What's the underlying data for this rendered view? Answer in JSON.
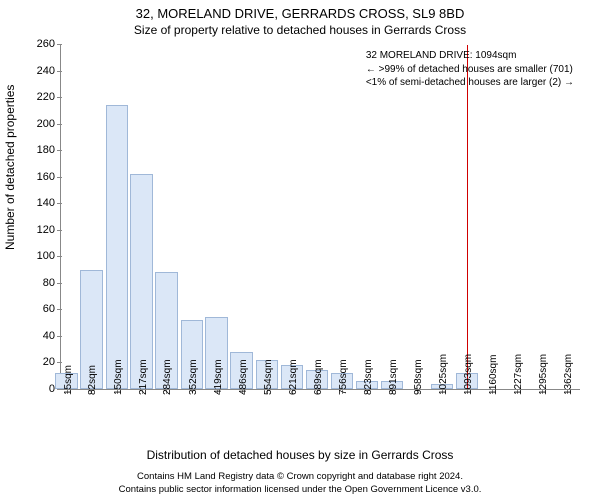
{
  "chart": {
    "type": "histogram",
    "title_main": "32, MORELAND DRIVE, GERRARDS CROSS, SL9 8BD",
    "title_sub": "Size of property relative to detached houses in Gerrards Cross",
    "xlabel": "Distribution of detached houses by size in Gerrards Cross",
    "ylabel": "Number of detached properties",
    "bar_color": "#dbe7f7",
    "bar_border_color": "#a0b8d8",
    "reference_line_color": "#d00000",
    "background_color": "#ffffff",
    "axis_color": "#888888",
    "title_fontsize": 13,
    "subtitle_fontsize": 12,
    "label_fontsize": 12,
    "tick_fontsize": 11,
    "annotation_fontsize": 10,
    "xlim": [
      0,
      1400
    ],
    "ylim": [
      0,
      260
    ],
    "ytick_step": 20,
    "x_ticks": [
      15,
      82,
      150,
      217,
      284,
      352,
      419,
      486,
      554,
      621,
      689,
      756,
      823,
      891,
      958,
      1025,
      1093,
      1160,
      1227,
      1295,
      1362
    ],
    "x_tick_suffix": "sqm",
    "bars": [
      {
        "x": 15,
        "count": 12
      },
      {
        "x": 82,
        "count": 90
      },
      {
        "x": 150,
        "count": 214
      },
      {
        "x": 217,
        "count": 162
      },
      {
        "x": 284,
        "count": 88
      },
      {
        "x": 352,
        "count": 52
      },
      {
        "x": 419,
        "count": 54
      },
      {
        "x": 486,
        "count": 28
      },
      {
        "x": 554,
        "count": 22
      },
      {
        "x": 621,
        "count": 18
      },
      {
        "x": 689,
        "count": 14
      },
      {
        "x": 756,
        "count": 12
      },
      {
        "x": 823,
        "count": 6
      },
      {
        "x": 891,
        "count": 6
      },
      {
        "x": 958,
        "count": 0
      },
      {
        "x": 1025,
        "count": 4
      },
      {
        "x": 1093,
        "count": 12
      },
      {
        "x": 1160,
        "count": 0
      },
      {
        "x": 1227,
        "count": 0
      },
      {
        "x": 1295,
        "count": 0
      },
      {
        "x": 1362,
        "count": 0
      }
    ],
    "bar_width_x": 60,
    "reference_x": 1094,
    "annotation": {
      "line1": "32 MORELAND DRIVE: 1094sqm",
      "line2": "← >99% of detached houses are smaller (701)",
      "line3": "<1% of semi-detached houses are larger (2) →"
    },
    "footer_line1": "Contains HM Land Registry data © Crown copyright and database right 2024.",
    "footer_line2": "Contains public sector information licensed under the Open Government Licence v3.0."
  }
}
